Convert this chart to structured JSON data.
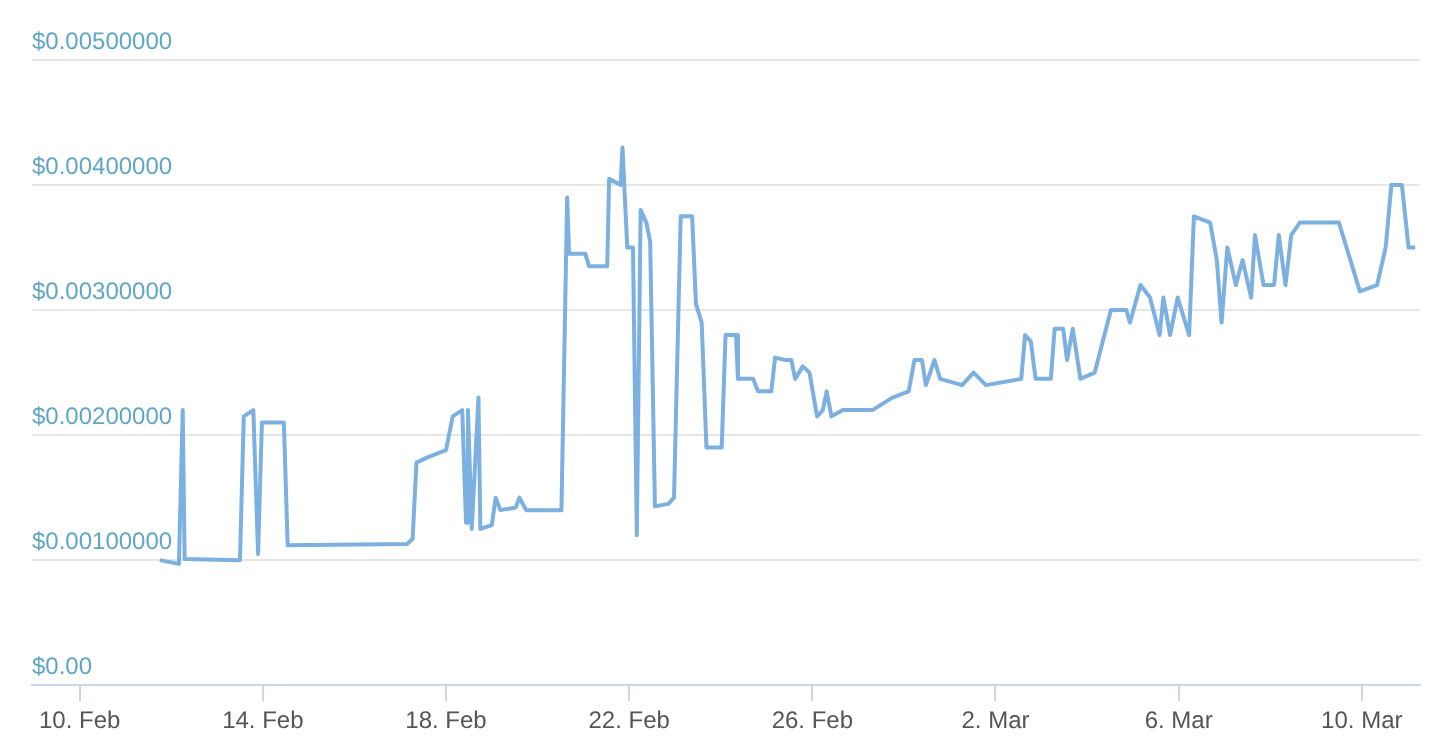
{
  "chart_data": {
    "type": "line",
    "marker": "none",
    "grid": "y",
    "legend": false,
    "xlim": [
      "--02-08T23:00",
      "--03-11T06:30"
    ],
    "xticks": [
      {
        "value": "--02-10",
        "label": "10. Feb"
      },
      {
        "value": "--02-14",
        "label": "14. Feb"
      },
      {
        "value": "--02-18",
        "label": "18. Feb"
      },
      {
        "value": "--02-22",
        "label": "22. Feb"
      },
      {
        "value": "--02-26",
        "label": "26. Feb"
      },
      {
        "value": "--03-02",
        "label": "2. Mar"
      },
      {
        "value": "--03-06",
        "label": "6. Mar"
      },
      {
        "value": "--03-10",
        "label": "10. Mar"
      }
    ],
    "ylim": [
      0,
      0.005
    ],
    "yticks": [
      {
        "value": 0,
        "label": "$0.00"
      },
      {
        "value": 0.001,
        "label": "$0.00100000"
      },
      {
        "value": 0.002,
        "label": "$0.00200000"
      },
      {
        "value": 0.003,
        "label": "$0.00300000"
      },
      {
        "value": 0.004,
        "label": "$0.00400000"
      },
      {
        "value": 0.005,
        "label": "$0.00500000"
      }
    ],
    "series": [
      {
        "color": "#7cb0e0",
        "x": [
          "--02-11T18:00",
          "--02-12T04:00",
          "--02-12T06:00",
          "--02-12T07:00",
          "--02-13T12:00",
          "--02-13T14:00",
          "--02-13T19:00",
          "--02-13T21:30",
          "--02-13T23:30",
          "--02-14T11:00",
          "--02-14T13:00",
          "--02-17T03:30",
          "--02-17T06:30",
          "--02-17T08:30",
          "--02-17T14:00",
          "--02-18T00:00",
          "--02-18T03:30",
          "--02-18T08:30",
          "--02-18T10:30",
          "--02-18T11:30",
          "--02-18T13:30",
          "--02-18T17:00",
          "--02-18T18:00",
          "--02-19T00:00",
          "--02-19T02:00",
          "--02-19T04:30",
          "--02-19T12:30",
          "--02-19T14:30",
          "--02-19T18:00",
          "--02-20T12:30",
          "--02-20T15:30",
          "--02-20T16:30",
          "--02-21T01:00",
          "--02-21T03:00",
          "--02-21T12:30",
          "--02-21T13:30",
          "--02-21T19:30",
          "--02-21T20:30",
          "--02-21T23:00",
          "--02-22T02:00",
          "--02-22T04:00",
          "--02-22T06:00",
          "--02-22T09:00",
          "--02-22T11:00",
          "--02-22T13:30",
          "--02-22T20:30",
          "--02-22T23:30",
          "--02-23T03:00",
          "--02-23T09:00",
          "--02-23T11:00",
          "--02-23T14:00",
          "--02-23T16:30",
          "--02-24T00:30",
          "--02-24T02:30",
          "--02-24T08:00",
          "--02-24T09:00",
          "--02-24T17:00",
          "--02-24T19:30",
          "--02-25T02:30",
          "--02-25T04:30",
          "--02-25T10:00",
          "--02-25T13:00",
          "--02-25T15:00",
          "--02-25T19:00",
          "--02-25T22:30",
          "--02-26T02:30",
          "--02-26T05:30",
          "--02-26T07:30",
          "--02-26T10:00",
          "--02-26T16:00",
          "--02-27T07:30",
          "--02-27T18:00",
          "--02-28T02:30",
          "--02-28T05:30",
          "--02-28T09:30",
          "--02-28T11:30",
          "--02-28T16:00",
          "--02-28T19:00",
          "--03-01T06:30",
          "--03-01T12:30",
          "--03-01T19:00",
          "--03-02T13:30",
          "--03-02T15:30",
          "--03-02T18:30",
          "--03-02T21:00",
          "--03-03T05:00",
          "--03-03T07:00",
          "--03-03T11:30",
          "--03-03T13:30",
          "--03-03T16:30",
          "--03-03T20:30",
          "--03-04T04:00",
          "--03-04T12:30",
          "--03-04T20:30",
          "--03-04T22:30",
          "--03-05T04:00",
          "--03-05T09:00",
          "--03-05T14:00",
          "--03-05T16:00",
          "--03-05T19:30",
          "--03-05T23:30",
          "--03-06T05:30",
          "--03-06T08:00",
          "--03-06T16:30",
          "--03-06T20:00",
          "--03-06T22:30",
          "--03-07T01:30",
          "--03-07T06:00",
          "--03-07T09:30",
          "--03-07T14:00",
          "--03-07T16:00",
          "--03-07T20:30",
          "--03-08T02:00",
          "--03-08T04:30",
          "--03-08T08:00",
          "--03-08T11:00",
          "--03-08T15:30",
          "--03-09T12:00",
          "--03-09T23:00",
          "--03-10T08:00",
          "--03-10T12:30",
          "--03-10T15:30",
          "--03-10T21:00",
          "--03-11T00:30",
          "--03-11T04:00"
        ],
        "values": [
          0.001,
          0.00097,
          0.0022,
          0.00101,
          0.001,
          0.00215,
          0.0022,
          0.00105,
          0.0021,
          0.0021,
          0.00112,
          0.00113,
          0.00117,
          0.00178,
          0.00182,
          0.00188,
          0.00215,
          0.0022,
          0.0013,
          0.0022,
          0.00125,
          0.0023,
          0.00125,
          0.00128,
          0.0015,
          0.0014,
          0.00142,
          0.0015,
          0.0014,
          0.0014,
          0.0039,
          0.00345,
          0.00345,
          0.00335,
          0.00335,
          0.00405,
          0.004,
          0.0043,
          0.0035,
          0.0035,
          0.0012,
          0.0038,
          0.0037,
          0.00355,
          0.00143,
          0.00145,
          0.0015,
          0.00375,
          0.00375,
          0.00305,
          0.0029,
          0.0019,
          0.0019,
          0.0028,
          0.0028,
          0.00245,
          0.00245,
          0.00235,
          0.00235,
          0.00262,
          0.0026,
          0.0026,
          0.00245,
          0.00255,
          0.0025,
          0.00215,
          0.0022,
          0.00235,
          0.00215,
          0.0022,
          0.0022,
          0.0023,
          0.00235,
          0.0026,
          0.0026,
          0.0024,
          0.0026,
          0.00245,
          0.0024,
          0.0025,
          0.0024,
          0.00245,
          0.0028,
          0.00275,
          0.00245,
          0.00245,
          0.00285,
          0.00285,
          0.0026,
          0.00285,
          0.00245,
          0.0025,
          0.003,
          0.003,
          0.0029,
          0.0032,
          0.0031,
          0.0028,
          0.0031,
          0.0028,
          0.0031,
          0.0028,
          0.00375,
          0.0037,
          0.0034,
          0.0029,
          0.0035,
          0.0032,
          0.0034,
          0.0031,
          0.0036,
          0.0032,
          0.0032,
          0.0036,
          0.0032,
          0.0036,
          0.0037,
          0.0037,
          0.00315,
          0.0032,
          0.0035,
          0.004,
          0.004,
          0.0035,
          0.0035
        ]
      }
    ]
  }
}
